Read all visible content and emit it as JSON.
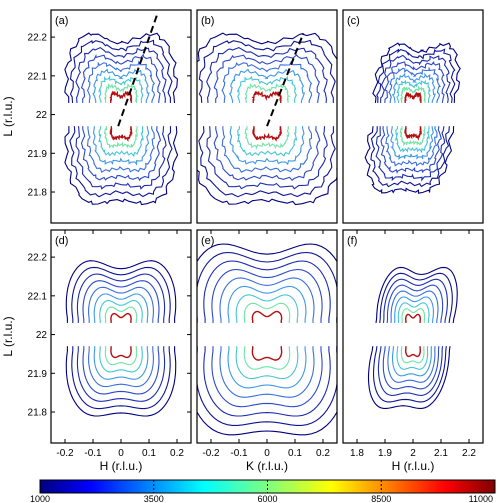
{
  "chart_data": {
    "type": "contour",
    "layout": "2x3 grid of contour map panels sharing one colorbar",
    "colorscale": {
      "min": 1000,
      "max": 11000,
      "ticks": [
        1000,
        3500,
        6000,
        8500,
        11000
      ],
      "tick_labels": [
        "1000",
        "3500",
        "6000",
        "8500",
        "11000"
      ],
      "colormap": "jet"
    },
    "levels": [
      1000,
      1700,
      2500,
      3300,
      4200,
      5200,
      6400,
      8000,
      10500
    ],
    "level_colors": [
      "#00007f",
      "#0e1595",
      "#1d2cb0",
      "#2c49cc",
      "#3a6fe0",
      "#3d99e8",
      "#45c6d6",
      "#6fe3a6",
      "#b40f0f"
    ],
    "panels": [
      {
        "label": "(a)",
        "xlabel": "",
        "ylabel": "L (r.l.u.)",
        "xlim": [
          -0.25,
          0.25
        ],
        "ylim": [
          21.72,
          22.27
        ],
        "xticks": [],
        "yticks": [
          21.8,
          21.9,
          22.0,
          22.1,
          22.2
        ],
        "ytick_labels": [
          "21.8",
          "21.9",
          "22",
          "22.1",
          "22.2"
        ],
        "kind": "measured",
        "center_x": 0.0,
        "scale_x": 1.0,
        "asym": 0,
        "shrink": 1.0,
        "dashed_line": {
          "from": [
            -0.01,
            21.97
          ],
          "to": [
            0.13,
            22.26
          ]
        }
      },
      {
        "label": "(b)",
        "xlabel": "",
        "ylabel": "",
        "xlim": [
          -0.25,
          0.25
        ],
        "ylim": [
          21.72,
          22.27
        ],
        "xticks": [],
        "yticks": [],
        "kind": "measured-wide",
        "center_x": 0.0,
        "scale_x": 1.35,
        "asym": 0,
        "shrink": 1.0,
        "dashed_line": {
          "from": [
            0.0,
            21.97
          ],
          "to": [
            0.13,
            22.21
          ]
        }
      },
      {
        "label": "(c)",
        "xlabel": "",
        "ylabel": "",
        "xlim": [
          1.75,
          2.25
        ],
        "ylim": [
          21.72,
          22.27
        ],
        "xticks": [],
        "yticks": [],
        "kind": "measured",
        "center_x": 2.0,
        "scale_x": 0.75,
        "asym": 0.35,
        "shrink": 0.85
      },
      {
        "label": "(d)",
        "xlabel": "H (r.l.u.)",
        "ylabel": "L (r.l.u.)",
        "xlim": [
          -0.25,
          0.25
        ],
        "ylim": [
          21.72,
          22.27
        ],
        "xticks": [
          -0.2,
          -0.1,
          0,
          0.1,
          0.2
        ],
        "xtick_labels": [
          "-0.2",
          "-0.1",
          "0",
          "0.1",
          "0.2"
        ],
        "yticks": [
          21.8,
          21.9,
          22.0,
          22.1,
          22.2
        ],
        "ytick_labels": [
          "21.8",
          "21.9",
          "22",
          "22.1",
          "22.2"
        ],
        "kind": "model",
        "center_x": 0.0,
        "scale_x": 1.0,
        "asym": 0,
        "shrink": 0.9
      },
      {
        "label": "(e)",
        "xlabel": "K (r.l.u.)",
        "ylabel": "",
        "xlim": [
          -0.25,
          0.25
        ],
        "ylim": [
          21.72,
          22.27
        ],
        "xticks": [
          -0.2,
          -0.1,
          0,
          0.1,
          0.2
        ],
        "xtick_labels": [
          "-0.2",
          "-0.1",
          "0",
          "0.1",
          "0.2"
        ],
        "yticks": [],
        "kind": "model-wide",
        "center_x": 0.0,
        "scale_x": 1.45,
        "asym": 0,
        "shrink": 1.15
      },
      {
        "label": "(f)",
        "xlabel": "H (r.l.u.)",
        "ylabel": "",
        "xlim": [
          1.75,
          2.25
        ],
        "ylim": [
          21.72,
          22.27
        ],
        "xticks": [
          1.8,
          1.9,
          2.0,
          2.1,
          2.2
        ],
        "xtick_labels": [
          "1.8",
          "1.9",
          "2",
          "2.1",
          "2.2"
        ],
        "yticks": [],
        "kind": "model",
        "center_x": 2.0,
        "scale_x": 0.72,
        "asym": 0.4,
        "shrink": 0.8
      }
    ],
    "blank_band_L": [
      21.97,
      22.03
    ],
    "grid": false,
    "legend": "none"
  }
}
